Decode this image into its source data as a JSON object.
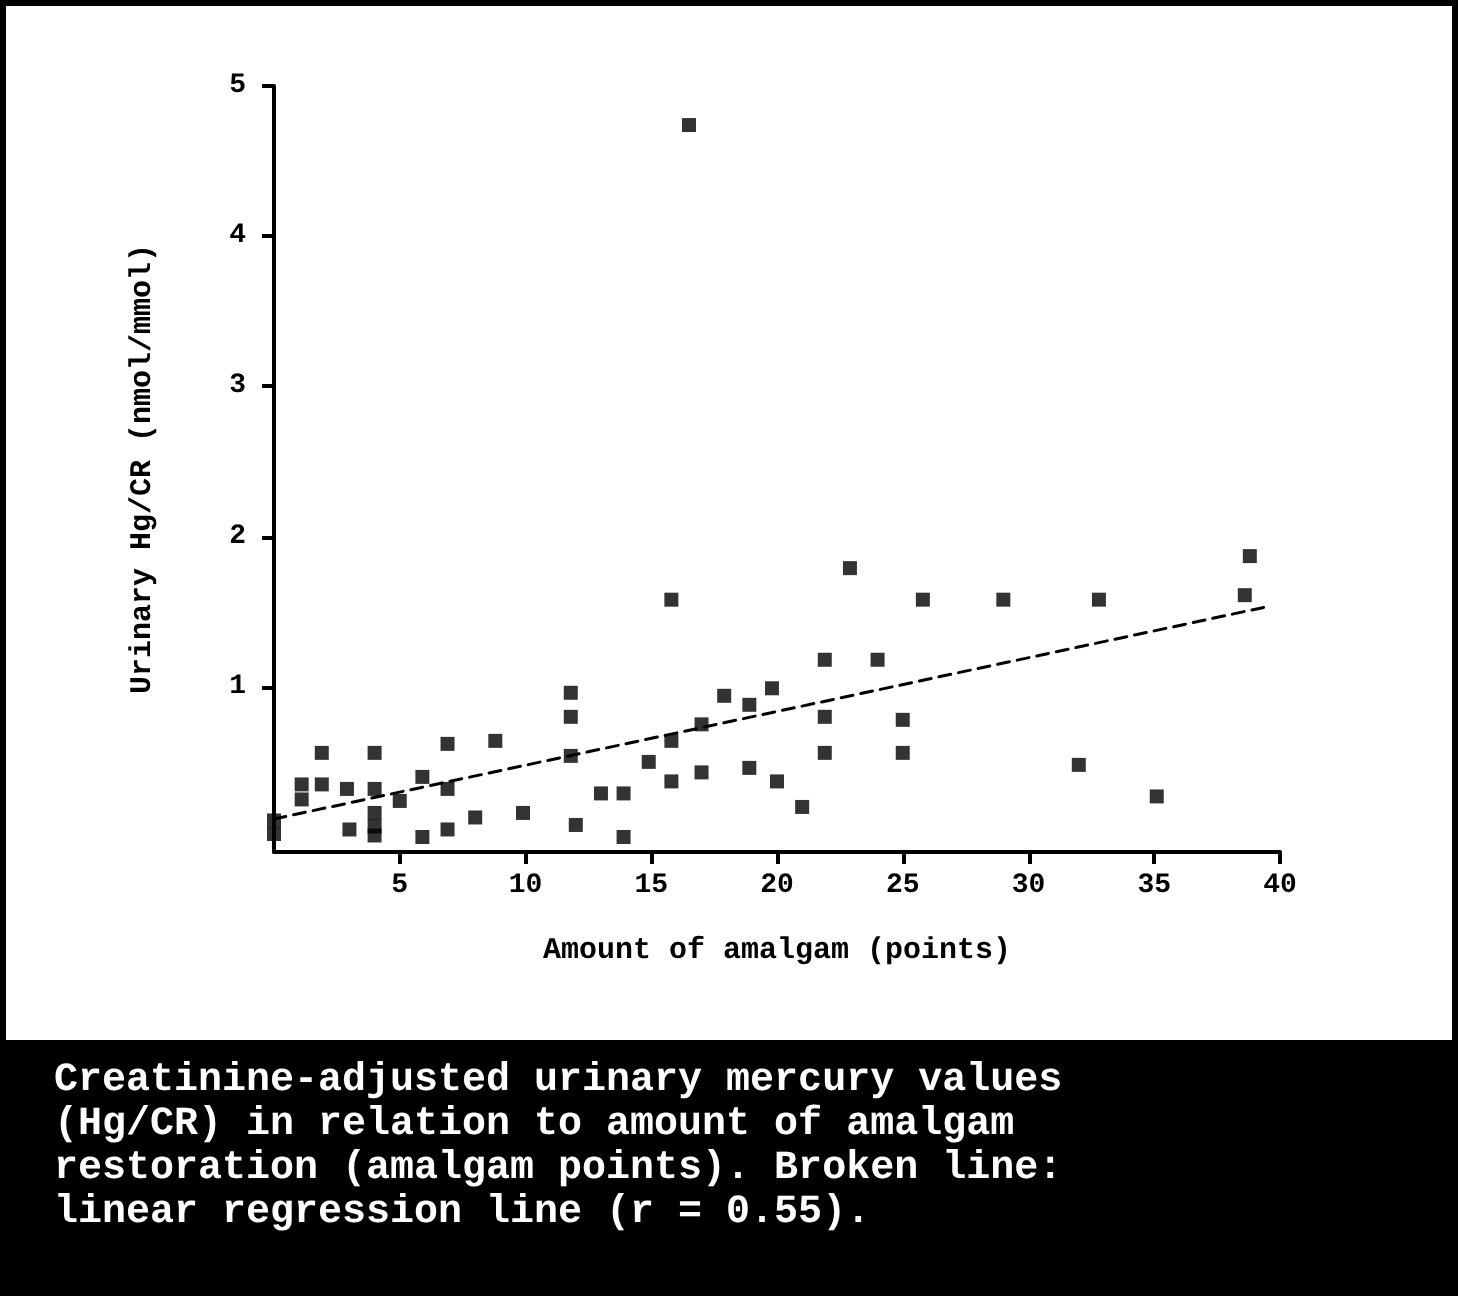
{
  "chart_data": {
    "type": "scatter",
    "xlabel": "Amount of amalgam (points)",
    "ylabel": "Urinary Hg/CR (nmol/mmol)",
    "annotations": [
      "Creatinine-adjusted urinary mercury values (Hg/CR) in relation to amount of amalgam restoration (amalgam points). Broken line: linear regression line (r = 0.55)."
    ],
    "xlim": [
      0,
      40
    ],
    "xticks": [
      5,
      10,
      15,
      20,
      25,
      30,
      35,
      40
    ],
    "ylim": [
      -0.1,
      5
    ],
    "yticks": [
      1,
      2,
      3,
      4,
      5
    ],
    "grid": false,
    "series": [
      {
        "type": "scatter",
        "color": "#000000",
        "marker": "square",
        "x": [
          0,
          0,
          1.1,
          1.1,
          1.9,
          1.9,
          2.9,
          3,
          4,
          4,
          4,
          4,
          4,
          5,
          5.9,
          5.9,
          6.9,
          6.9,
          6.9,
          8,
          8.8,
          9.9,
          11.8,
          11.8,
          11.8,
          12,
          13,
          13.9,
          13.9,
          14.9,
          15.8,
          15.8,
          15.8,
          16.5,
          17,
          17,
          17.9,
          18.9,
          18.9,
          19.8,
          20,
          21,
          21.9,
          21.9,
          21.9,
          22.9,
          24,
          25,
          25,
          25.8,
          29,
          32,
          32.8,
          35.1,
          38.6,
          38.8
        ],
        "values": [
          0.02,
          0.11,
          0.25,
          0.35,
          0.56,
          0.35,
          0.32,
          0.05,
          0.56,
          0.32,
          0.16,
          0.07,
          0.01,
          0.24,
          0.4,
          0,
          0.62,
          0.32,
          0.05,
          0.13,
          0.64,
          0.16,
          0.96,
          0.8,
          0.54,
          0.08,
          0.29,
          0.29,
          0,
          0.5,
          1.58,
          0.64,
          0.37,
          4.74,
          0.75,
          0.43,
          0.94,
          0.88,
          0.46,
          0.99,
          0.37,
          0.2,
          1.18,
          0.8,
          0.56,
          1.79,
          1.18,
          0.78,
          0.56,
          1.58,
          1.58,
          0.48,
          1.58,
          0.27,
          1.61,
          1.87
        ]
      },
      {
        "type": "line",
        "color": "#000000",
        "marker": "none",
        "line_style": "dashed",
        "x": [
          0,
          39.4
        ],
        "values": [
          0.12,
          1.53
        ]
      }
    ]
  }
}
